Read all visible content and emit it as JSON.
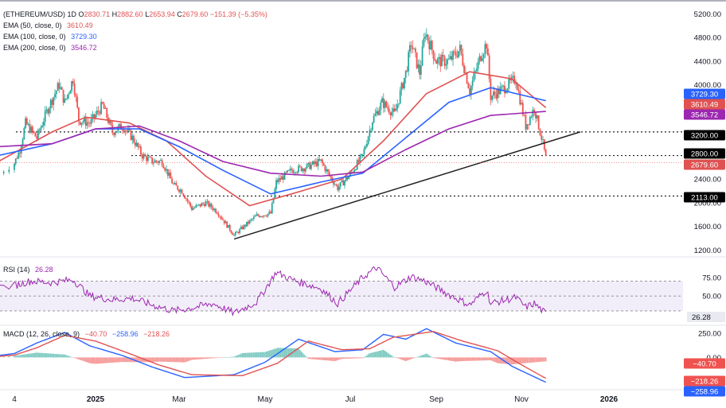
{
  "chart_data": [
    {
      "type": "candlestick",
      "header": {
        "symbol": "(ETHEREUM/USD)",
        "interval": "1D",
        "open_label": "O",
        "open": "2830.71",
        "high_label": "H",
        "high": "2882.60",
        "low_label": "L",
        "low": "2653.94",
        "close_label": "C",
        "close": "2679.60",
        "change": "−151.39 (−5.35%)"
      },
      "indicators": [
        {
          "label": "EMA (50, close, 0)",
          "value": "3610.49",
          "color": "#e05252"
        },
        {
          "label": "EMA (100, close, 0)",
          "value": "3729.30",
          "color": "#2962ff"
        },
        {
          "label": "EMA (200, close, 0)",
          "value": "3546.72",
          "color": "#9c27b0"
        }
      ],
      "y_ticks": [
        "5200.00",
        "4800.00",
        "4400.00",
        "4000.00",
        "3600.00",
        "2400.00",
        "2000.00",
        "1600.00",
        "1200.00"
      ],
      "ylim": [
        1150,
        5300
      ],
      "x_ticks": [
        "4",
        "2025",
        "Mar",
        "May",
        "Jul",
        "Sep",
        "Nov",
        "2026"
      ],
      "price_tags": [
        {
          "value": "3729.30",
          "color": "#2962ff"
        },
        {
          "value": "3610.49",
          "color": "#e05252"
        },
        {
          "value": "3546.72",
          "color": "#9c27b0"
        },
        {
          "value": "3200.00",
          "color": "#000000"
        },
        {
          "value": "2800.00",
          "color": "#000000"
        },
        {
          "value": "2679.60",
          "color": "#e05252"
        },
        {
          "value": "2113.00",
          "color": "#000000"
        }
      ],
      "horizontal_levels": [
        3200,
        2800,
        2113
      ],
      "trendline": {
        "from": [
          "2025-04-09",
          1385
        ],
        "to": [
          "2025-12-12",
          3200
        ]
      },
      "price_path": [
        [
          "2024-11-01",
          2500
        ],
        [
          "2024-11-08",
          2900
        ],
        [
          "2024-11-12",
          3350
        ],
        [
          "2024-11-20",
          3100
        ],
        [
          "2024-11-28",
          3600
        ],
        [
          "2024-12-06",
          4000
        ],
        [
          "2024-12-10",
          3700
        ],
        [
          "2024-12-16",
          4100
        ],
        [
          "2024-12-20",
          3400
        ],
        [
          "2024-12-28",
          3350
        ],
        [
          "2025-01-06",
          3650
        ],
        [
          "2025-01-13",
          3200
        ],
        [
          "2025-01-20",
          3300
        ],
        [
          "2025-01-27",
          3100
        ],
        [
          "2025-02-03",
          2800
        ],
        [
          "2025-02-10",
          2700
        ],
        [
          "2025-02-17",
          2700
        ],
        [
          "2025-02-25",
          2300
        ],
        [
          "2025-03-03",
          2200
        ],
        [
          "2025-03-10",
          1900
        ],
        [
          "2025-03-20",
          2000
        ],
        [
          "2025-03-28",
          1850
        ],
        [
          "2025-04-09",
          1450
        ],
        [
          "2025-04-16",
          1600
        ],
        [
          "2025-04-25",
          1780
        ],
        [
          "2025-05-05",
          1820
        ],
        [
          "2025-05-09",
          2350
        ],
        [
          "2025-05-20",
          2550
        ],
        [
          "2025-05-30",
          2600
        ],
        [
          "2025-06-10",
          2700
        ],
        [
          "2025-06-15",
          2500
        ],
        [
          "2025-06-22",
          2250
        ],
        [
          "2025-06-30",
          2450
        ],
        [
          "2025-07-10",
          2800
        ],
        [
          "2025-07-17",
          3400
        ],
        [
          "2025-07-24",
          3700
        ],
        [
          "2025-08-02",
          3500
        ],
        [
          "2025-08-10",
          4200
        ],
        [
          "2025-08-14",
          4700
        ],
        [
          "2025-08-20",
          4200
        ],
        [
          "2025-08-24",
          4900
        ],
        [
          "2025-09-01",
          4400
        ],
        [
          "2025-09-10",
          4400
        ],
        [
          "2025-09-18",
          4600
        ],
        [
          "2025-09-25",
          3900
        ],
        [
          "2025-10-03",
          4500
        ],
        [
          "2025-10-07",
          4700
        ],
        [
          "2025-10-10",
          3800
        ],
        [
          "2025-10-20",
          3950
        ],
        [
          "2025-10-28",
          4100
        ],
        [
          "2025-11-04",
          3300
        ],
        [
          "2025-11-10",
          3600
        ],
        [
          "2025-11-16",
          3000
        ],
        [
          "2025-11-18",
          2750
        ]
      ],
      "ema_paths": [
        {
          "name": "EMA (50, close, 0)",
          "color": "#e05252",
          "points": [
            [
              "2024-11-01",
              2700
            ],
            [
              "2024-12-01",
              3200
            ],
            [
              "2024-12-25",
              3450
            ],
            [
              "2025-01-25",
              3350
            ],
            [
              "2025-02-20",
              3050
            ],
            [
              "2025-03-20",
              2450
            ],
            [
              "2025-04-20",
              1950
            ],
            [
              "2025-05-20",
              2150
            ],
            [
              "2025-06-25",
              2400
            ],
            [
              "2025-07-25",
              3050
            ],
            [
              "2025-08-25",
              3850
            ],
            [
              "2025-09-25",
              4220
            ],
            [
              "2025-10-25",
              4100
            ],
            [
              "2025-11-18",
              3610
            ]
          ]
        },
        {
          "name": "EMA (100, close, 0)",
          "color": "#2962ff",
          "points": [
            [
              "2024-11-01",
              2800
            ],
            [
              "2024-12-01",
              3000
            ],
            [
              "2025-01-01",
              3250
            ],
            [
              "2025-02-01",
              3250
            ],
            [
              "2025-03-01",
              2950
            ],
            [
              "2025-04-01",
              2550
            ],
            [
              "2025-05-05",
              2150
            ],
            [
              "2025-06-10",
              2350
            ],
            [
              "2025-07-10",
              2500
            ],
            [
              "2025-08-10",
              3100
            ],
            [
              "2025-09-10",
              3700
            ],
            [
              "2025-10-10",
              3950
            ],
            [
              "2025-11-18",
              3729
            ]
          ]
        },
        {
          "name": "EMA (200, close, 0)",
          "color": "#9c27b0",
          "points": [
            [
              "2024-11-01",
              2950
            ],
            [
              "2024-12-01",
              3000
            ],
            [
              "2025-01-01",
              3250
            ],
            [
              "2025-02-01",
              3300
            ],
            [
              "2025-03-01",
              3050
            ],
            [
              "2025-04-01",
              2700
            ],
            [
              "2025-05-05",
              2500
            ],
            [
              "2025-06-10",
              2450
            ],
            [
              "2025-07-10",
              2520
            ],
            [
              "2025-08-10",
              2900
            ],
            [
              "2025-09-10",
              3250
            ],
            [
              "2025-10-10",
              3480
            ],
            [
              "2025-11-18",
              3547
            ]
          ]
        }
      ]
    },
    {
      "type": "line",
      "label": "RSI (14)",
      "value": "26.28",
      "color": "#9c27b0",
      "y_ticks": [
        "75.00",
        "50.00"
      ],
      "band": [
        30,
        70
      ],
      "ylim": [
        15,
        95
      ],
      "points": [
        [
          "2024-11-01",
          62
        ],
        [
          "2024-11-15",
          70
        ],
        [
          "2024-12-01",
          68
        ],
        [
          "2024-12-16",
          72
        ],
        [
          "2024-12-28",
          50
        ],
        [
          "2025-01-13",
          45
        ],
        [
          "2025-01-27",
          47
        ],
        [
          "2025-02-10",
          38
        ],
        [
          "2025-02-25",
          30
        ],
        [
          "2025-03-10",
          34
        ],
        [
          "2025-03-25",
          40
        ],
        [
          "2025-04-09",
          27
        ],
        [
          "2025-04-25",
          42
        ],
        [
          "2025-05-09",
          82
        ],
        [
          "2025-05-20",
          72
        ],
        [
          "2025-06-10",
          60
        ],
        [
          "2025-06-22",
          40
        ],
        [
          "2025-07-10",
          75
        ],
        [
          "2025-07-20",
          88
        ],
        [
          "2025-08-02",
          62
        ],
        [
          "2025-08-14",
          76
        ],
        [
          "2025-08-24",
          70
        ],
        [
          "2025-09-10",
          52
        ],
        [
          "2025-09-25",
          38
        ],
        [
          "2025-10-07",
          58
        ],
        [
          "2025-10-10",
          40
        ],
        [
          "2025-10-28",
          48
        ],
        [
          "2025-11-04",
          35
        ],
        [
          "2025-11-10",
          40
        ],
        [
          "2025-11-18",
          26
        ]
      ]
    },
    {
      "type": "macd",
      "label": "MACD (12, 26, close, 9)",
      "histogram": "−40.70",
      "macd": "−258.96",
      "signal": "−218.26",
      "y_ticks": [
        "250.00",
        "0.00"
      ],
      "ylim": [
        -320,
        310
      ],
      "macd_points": [
        [
          "2024-11-01",
          20
        ],
        [
          "2024-11-20",
          150
        ],
        [
          "2024-12-10",
          260
        ],
        [
          "2024-12-28",
          120
        ],
        [
          "2025-01-20",
          20
        ],
        [
          "2025-02-10",
          -100
        ],
        [
          "2025-03-05",
          -210
        ],
        [
          "2025-04-09",
          -180
        ],
        [
          "2025-05-01",
          -50
        ],
        [
          "2025-05-25",
          190
        ],
        [
          "2025-06-20",
          60
        ],
        [
          "2025-07-10",
          80
        ],
        [
          "2025-07-25",
          240
        ],
        [
          "2025-08-10",
          190
        ],
        [
          "2025-08-25",
          300
        ],
        [
          "2025-09-15",
          150
        ],
        [
          "2025-10-10",
          60
        ],
        [
          "2025-10-25",
          -90
        ],
        [
          "2025-11-18",
          -259
        ]
      ],
      "signal_points": [
        [
          "2024-11-01",
          10
        ],
        [
          "2024-11-20",
          100
        ],
        [
          "2024-12-10",
          230
        ],
        [
          "2025-01-01",
          170
        ],
        [
          "2025-01-25",
          40
        ],
        [
          "2025-02-15",
          -80
        ],
        [
          "2025-03-10",
          -180
        ],
        [
          "2025-04-15",
          -190
        ],
        [
          "2025-05-10",
          -60
        ],
        [
          "2025-06-01",
          170
        ],
        [
          "2025-06-25",
          80
        ],
        [
          "2025-07-15",
          90
        ],
        [
          "2025-08-01",
          210
        ],
        [
          "2025-08-30",
          270
        ],
        [
          "2025-09-20",
          170
        ],
        [
          "2025-10-15",
          70
        ],
        [
          "2025-10-30",
          -60
        ],
        [
          "2025-11-18",
          -218
        ]
      ]
    }
  ]
}
